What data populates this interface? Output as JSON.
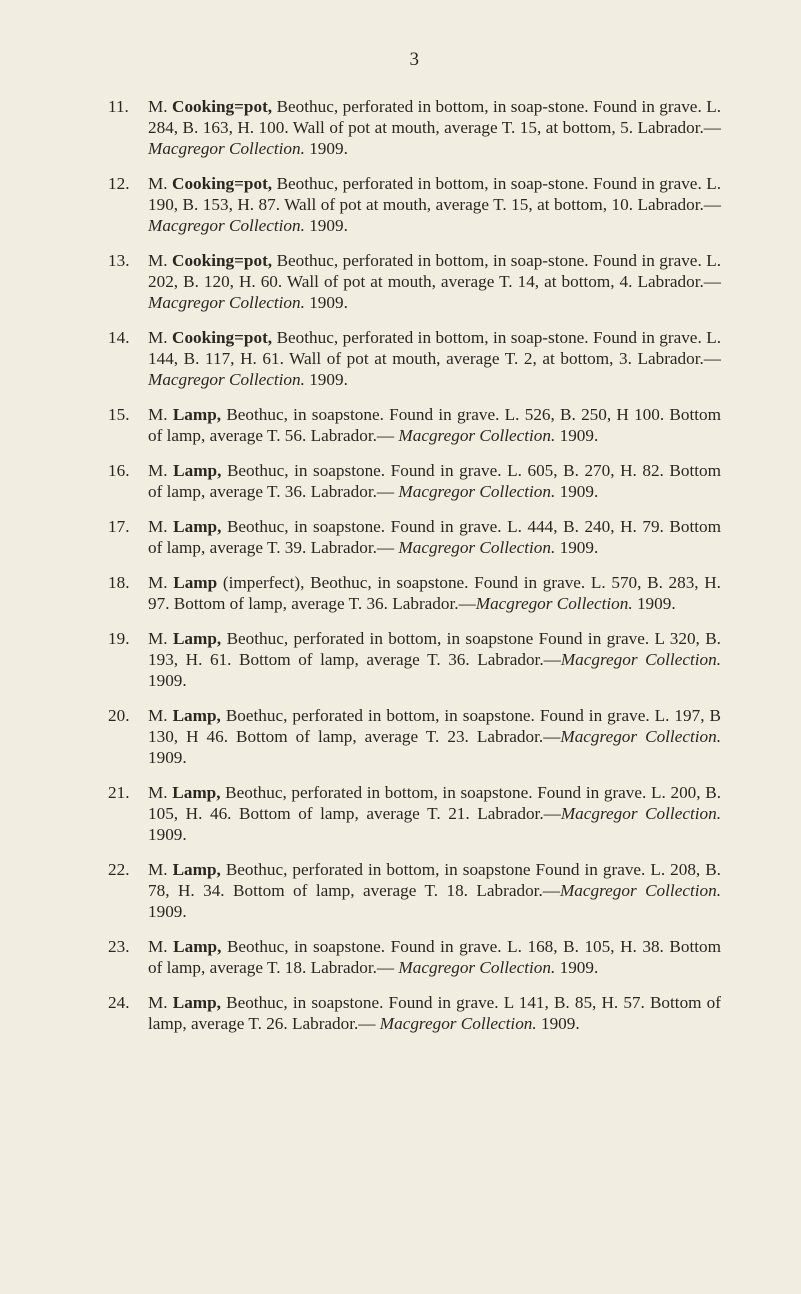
{
  "page_number": "3",
  "entries": [
    {
      "n": "11.",
      "lead": "M.  ",
      "title": "Cooking=pot,",
      "rest1": " Beothuc, perforated in bottom, in soap-stone.  Found in grave.  L. 284, B. 163, H. 100.  Wall of pot at mouth, average T. 15, at bottom, 5.  Labrador.—",
      "ital": "Macgregor Collection.",
      "rest2": "  1909."
    },
    {
      "n": "12.",
      "lead": "M.  ",
      "title": "Cooking=pot,",
      "rest1": " Beothuc, perforated in bottom, in soap-stone.  Found in grave.  L. 190, B. 153, H. 87.  Wall of pot at mouth, average T. 15, at bottom, 10.  Labrador.—",
      "ital": "Macgregor Collection.",
      "rest2": "  1909."
    },
    {
      "n": "13.",
      "lead": "M.  ",
      "title": "Cooking=pot,",
      "rest1": " Beothuc, perforated in bottom, in soap-stone.  Found in grave.  L. 202, B. 120, H. 60.  Wall of pot at mouth, average T. 14, at bottom, 4.  Labrador.—",
      "ital": "Macgregor Collection.",
      "rest2": "  1909."
    },
    {
      "n": "14.",
      "lead": "M.  ",
      "title": "Cooking=pot,",
      "rest1": " Beothuc, perforated in bottom, in soap-stone.  Found in grave.  L. 144, B. 117, H. 61.  Wall of pot at mouth, average T. 2, at bottom, 3.  Labrador.—",
      "ital": "Macgregor Collection.",
      "rest2": "  1909."
    },
    {
      "n": "15.",
      "lead": "M.  ",
      "title": "Lamp,",
      "rest1": " Beothuc, in soapstone.  Found in grave.  L. 526, B. 250, H 100.  Bottom of lamp, average T. 56.  Labrador.— ",
      "ital": "Macgregor Collection.",
      "rest2": "  1909."
    },
    {
      "n": "16.",
      "lead": "M.  ",
      "title": "Lamp,",
      "rest1": " Beothuc, in soapstone.  Found in grave.  L. 605, B. 270, H. 82.  Bottom of lamp, average T. 36.  Labrador.— ",
      "ital": "Macgregor Collection.",
      "rest2": "  1909."
    },
    {
      "n": "17.",
      "lead": "M.  ",
      "title": "Lamp,",
      "rest1": " Beothuc, in soapstone.  Found in grave.  L. 444, B. 240, H. 79.  Bottom of lamp, average T. 39.  Labrador.— ",
      "ital": "Macgregor Collection.",
      "rest2": "  1909."
    },
    {
      "n": "18.",
      "lead": "M.  ",
      "title": "Lamp",
      "rest1": " (imperfect), Beothuc, in soapstone.  Found in grave.  L. 570, B. 283, H. 97.  Bottom of lamp, average T. 36. Labrador.—",
      "ital": "Macgregor Collection.",
      "rest2": "  1909."
    },
    {
      "n": "19.",
      "lead": "M.  ",
      "title": "Lamp,",
      "rest1": " Beothuc, perforated in bottom, in soapstone Found in grave.  L 320, B. 193, H. 61.  Bottom of lamp, average T. 36.  Labrador.—",
      "ital": "Macgregor Collection.",
      "rest2": "  1909."
    },
    {
      "n": "20.",
      "lead": "M.  ",
      "title": "Lamp,",
      "rest1": " Boethuc, perforated in bottom, in soapstone. Found in grave.  L. 197, B 130, H 46.  Bottom of lamp, average T. 23.  Labrador.—",
      "ital": "Macgregor Collection.",
      "rest2": "  1909."
    },
    {
      "n": "21.",
      "lead": "M.  ",
      "title": "Lamp,",
      "rest1": " Beothuc, perforated in bottom, in soapstone. Found in grave.  L. 200, B. 105, H. 46.  Bottom of lamp, average T. 21.  Labrador.—",
      "ital": "Macgregor Collection.",
      "rest2": "  1909."
    },
    {
      "n": "22.",
      "lead": "M.  ",
      "title": "Lamp,",
      "rest1": " Beothuc, perforated in bottom, in soapstone Found in grave.  L. 208, B. 78, H. 34.  Bottom of lamp, average T. 18.  Labrador.—",
      "ital": "Macgregor Collection.",
      "rest2": "  1909."
    },
    {
      "n": "23.",
      "lead": "M.  ",
      "title": "Lamp,",
      "rest1": " Beothuc, in soapstone.  Found in grave.  L. 168, B. 105, H. 38.  Bottom of lamp, average T. 18.  Labrador.— ",
      "ital": "Macgregor Collection.",
      "rest2": "  1909."
    },
    {
      "n": "24.",
      "lead": "M.  ",
      "title": "Lamp,",
      "rest1": " Beothuc, in soapstone.  Found in grave.  L 141, B. 85, H. 57.  Bottom of lamp, average T. 26.  Labrador.— ",
      "ital": "Macgregor Collection.",
      "rest2": "  1909."
    }
  ]
}
